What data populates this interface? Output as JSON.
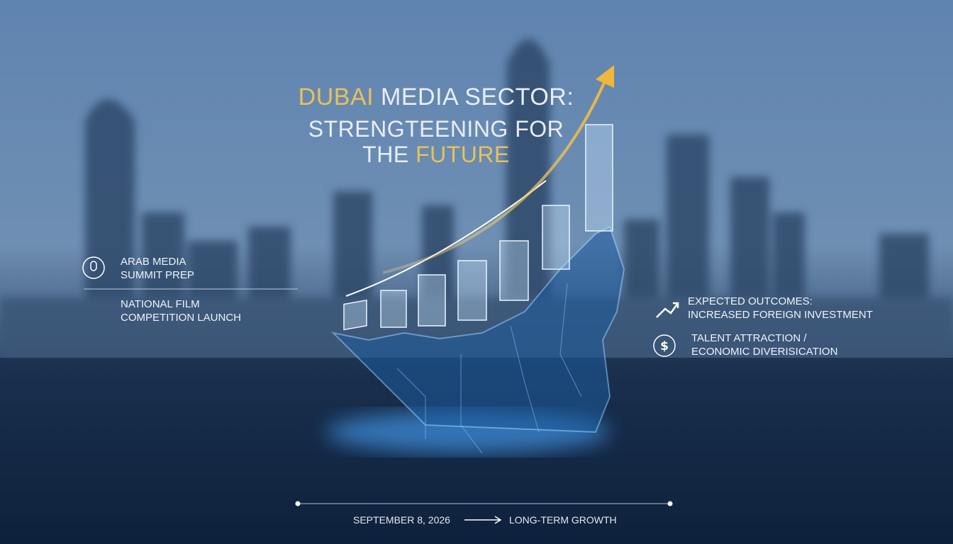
{
  "title": {
    "line1": [
      "DUBAI",
      "MEDIA SECTOR:"
    ],
    "line2": "STRENGTEENING FOR",
    "line3": [
      "THE",
      "FUTURE"
    ]
  },
  "left": [
    {
      "lines": [
        "ARAB MEDIA",
        "SUMMIT PREP"
      ]
    },
    {
      "lines": [
        "NATIONAL FILM",
        "COMPETITION LAUNCH"
      ]
    }
  ],
  "right": [
    {
      "lines": [
        "EXPECTED OUTCOMES:",
        "INCREASED FOREIGN INVESTMENT"
      ]
    },
    {
      "lines": [
        "TALENT ATTRACTION /",
        "ECONOMIC DIVERISICATION"
      ]
    }
  ],
  "timeline": {
    "start": "SEPTEMBER 8, 2026",
    "end": "LONG-TERM GROWTH"
  }
}
